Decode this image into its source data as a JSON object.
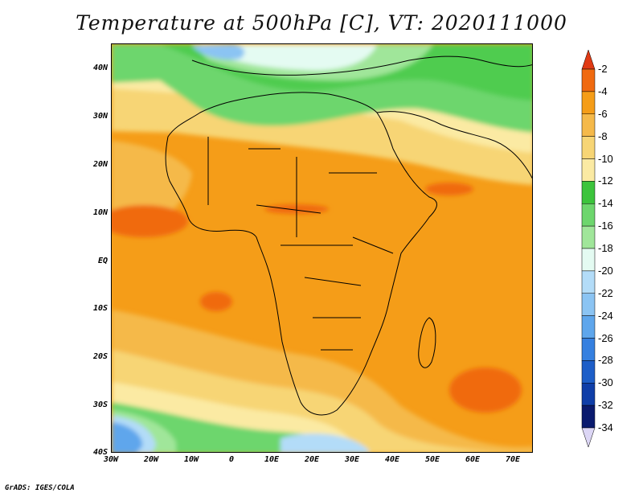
{
  "title": "Temperature at 500hPa [C], VT: 2020111000",
  "credit": "GrADS: IGES/COLA",
  "map": {
    "variable": "Temperature at 500hPa",
    "units": "C",
    "valid_time": "2020111000",
    "lon_range": [
      -30,
      75
    ],
    "lat_range": [
      -40,
      45
    ],
    "lat_labels": [
      "40N",
      "30N",
      "20N",
      "10N",
      "EQ",
      "10S",
      "20S",
      "30S",
      "40S"
    ],
    "lat_values": [
      40,
      30,
      20,
      10,
      0,
      -10,
      -20,
      -30,
      -40
    ],
    "lon_labels": [
      "30W",
      "20W",
      "10W",
      "0",
      "10E",
      "20E",
      "30E",
      "40E",
      "50E",
      "60E",
      "70E"
    ],
    "lon_values": [
      -30,
      -20,
      -10,
      0,
      10,
      20,
      30,
      40,
      50,
      60,
      70
    ]
  },
  "colorbar": {
    "labels": [
      "-2",
      "-4",
      "-6",
      "-8",
      "-10",
      "-12",
      "-14",
      "-16",
      "-18",
      "-20",
      "-22",
      "-24",
      "-26",
      "-28",
      "-30",
      "-32",
      "-34"
    ],
    "colors": [
      "#e03a14",
      "#f06a10",
      "#f59d18",
      "#f5b94a",
      "#f7d575",
      "#fbeaa3",
      "#3cc43c",
      "#6dd66d",
      "#a0e69a",
      "#e4fbf2",
      "#b3dcf8",
      "#8bc4f3",
      "#5ea6ec",
      "#3580e0",
      "#1d5ec8",
      "#0f3ea8",
      "#0a1a6e",
      "#dcd6f5"
    ]
  },
  "colors": {
    "background": "#ffffff",
    "ocean_warm": "#f59d18",
    "land_warm": "#f5b94a",
    "border": "#000000"
  }
}
